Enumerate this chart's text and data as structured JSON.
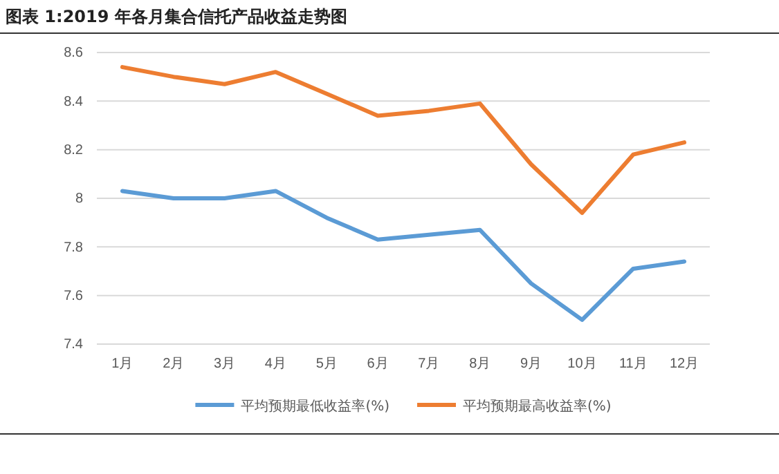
{
  "chart_data": {
    "type": "line",
    "title": "图表 1:2019 年各月集合信托产品收益走势图",
    "categories": [
      "1月",
      "2月",
      "3月",
      "4月",
      "5月",
      "6月",
      "7月",
      "8月",
      "9月",
      "10月",
      "11月",
      "12月"
    ],
    "series": [
      {
        "name": "平均预期最低收益率(%)",
        "color": "#5b9bd5",
        "values": [
          8.03,
          8.0,
          8.0,
          8.03,
          7.92,
          7.83,
          7.85,
          7.87,
          7.65,
          7.5,
          7.71,
          7.74
        ]
      },
      {
        "name": "平均预期最高收益率(%)",
        "color": "#ed7d31",
        "values": [
          8.54,
          8.5,
          8.47,
          8.52,
          8.43,
          8.34,
          8.36,
          8.39,
          8.14,
          7.94,
          8.18,
          8.23
        ]
      }
    ],
    "ylim": [
      7.4,
      8.6
    ],
    "yticks": [
      7.4,
      7.6,
      7.8,
      8,
      8.2,
      8.4,
      8.6
    ],
    "grid": "y",
    "legend": "bottom",
    "marker": "none",
    "line_style": "solid"
  }
}
